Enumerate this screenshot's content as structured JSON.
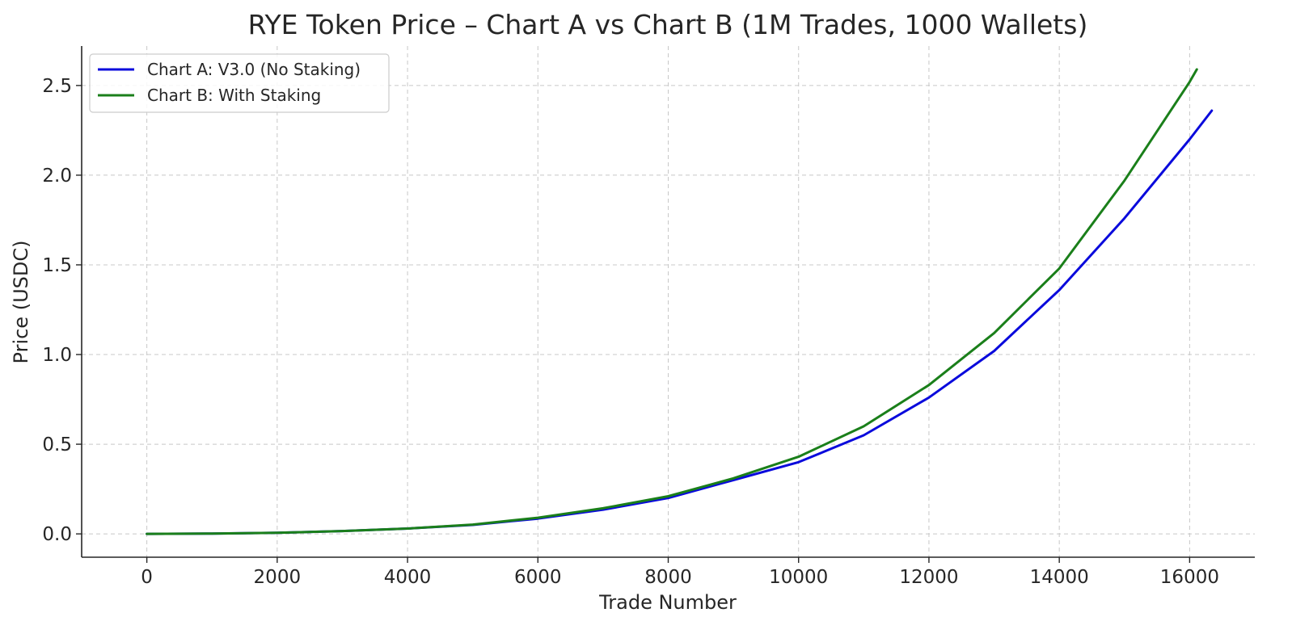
{
  "chart_data": {
    "type": "line",
    "title": "RYE Token Price – Chart A vs Chart B (1M Trades, 1000 Wallets)",
    "xlabel": "Trade Number",
    "ylabel": "Price (USDC)",
    "xlim": [
      -1000,
      17000
    ],
    "ylim": [
      -0.13,
      2.72
    ],
    "xticks": [
      0,
      2000,
      4000,
      6000,
      8000,
      10000,
      12000,
      14000,
      16000
    ],
    "yticks": [
      0.0,
      0.5,
      1.0,
      1.5,
      2.0,
      2.5
    ],
    "xtick_labels": [
      "0",
      "2000",
      "4000",
      "6000",
      "8000",
      "10000",
      "12000",
      "14000",
      "16000"
    ],
    "ytick_labels": [
      "0.0",
      "0.5",
      "1.0",
      "1.5",
      "2.0",
      "2.5"
    ],
    "grid": true,
    "legend_position": "top-left",
    "series": [
      {
        "name": "Chart A: V3.0 (No Staking)",
        "color": "#0a0adc",
        "x": [
          0,
          1000,
          2000,
          3000,
          4000,
          5000,
          6000,
          7000,
          8000,
          9000,
          10000,
          11000,
          12000,
          13000,
          14000,
          15000,
          16000,
          16340
        ],
        "y": [
          0.0,
          0.002,
          0.006,
          0.016,
          0.03,
          0.05,
          0.085,
          0.135,
          0.2,
          0.3,
          0.4,
          0.55,
          0.76,
          1.02,
          1.36,
          1.76,
          2.2,
          2.36
        ]
      },
      {
        "name": "Chart B: With Staking",
        "color": "#1a7f1a",
        "x": [
          0,
          1000,
          2000,
          3000,
          4000,
          5000,
          6000,
          7000,
          8000,
          9000,
          10000,
          11000,
          12000,
          13000,
          14000,
          15000,
          16000,
          16110
        ],
        "y": [
          0.0,
          0.002,
          0.006,
          0.016,
          0.03,
          0.052,
          0.09,
          0.143,
          0.21,
          0.31,
          0.43,
          0.6,
          0.83,
          1.12,
          1.48,
          1.97,
          2.52,
          2.59
        ]
      }
    ]
  }
}
